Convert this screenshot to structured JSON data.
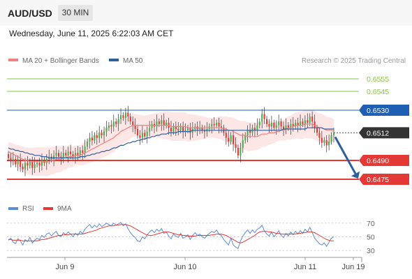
{
  "header": {
    "symbol": "AUD/USD",
    "timeframe": "30 MIN",
    "datetime": "Wednesday, June 11, 2025 6:22:03 AM CET"
  },
  "colors": {
    "candle_up": "#4caf50",
    "candle_down": "#e53935",
    "ma20": "#f08080",
    "bollinger_fill": "#fde2e2",
    "ma50": "#2c5f9e",
    "resistance": "#8bc34a",
    "pivot": "#1e5fb4",
    "support": "#e53935",
    "last_price": "#333333",
    "arrow": "#2c5f9e",
    "rsi": "#5b8cd6",
    "rsi_ma": "#e53935"
  },
  "chart_data": [
    {
      "type": "candlestick",
      "legend": [
        {
          "label": "MA 20 + Bollinger Bands",
          "color": "#f08080"
        },
        {
          "label": "MA 50",
          "color": "#2c5f9e"
        }
      ],
      "watermark": "Research © 2025 Trading Central",
      "ylim": [
        0.6465,
        0.6565
      ],
      "x_tick_labels": [
        "Jun 9",
        "Jun 10",
        "Jun 11",
        "Jun 19"
      ],
      "levels": [
        {
          "value": "0.6555",
          "kind": "resistance"
        },
        {
          "value": "0.6545",
          "kind": "resistance"
        },
        {
          "value": "0.6530",
          "kind": "pivot"
        },
        {
          "value": "0.6512",
          "kind": "last"
        },
        {
          "value": "0.6490",
          "kind": "support"
        },
        {
          "value": "0.6475",
          "kind": "support"
        }
      ],
      "forecast_arrow": {
        "from": 0.6512,
        "to": 0.6475
      },
      "closes": [
        0.6492,
        0.649,
        0.6491,
        0.6487,
        0.649,
        0.6485,
        0.6483,
        0.6488,
        0.6486,
        0.6489,
        0.6484,
        0.6487,
        0.6488,
        0.6486,
        0.649,
        0.6488,
        0.6491,
        0.6493,
        0.6491,
        0.6494,
        0.6496,
        0.6493,
        0.6492,
        0.6496,
        0.6494,
        0.6497,
        0.6495,
        0.6493,
        0.6496,
        0.6494,
        0.6498,
        0.6496,
        0.6501,
        0.6505,
        0.6508,
        0.6506,
        0.651,
        0.6508,
        0.6512,
        0.651,
        0.6513,
        0.6516,
        0.6518,
        0.6517,
        0.6521,
        0.6519,
        0.6523,
        0.6526,
        0.6524,
        0.6528,
        0.6525,
        0.6521,
        0.6518,
        0.6515,
        0.651,
        0.6508,
        0.6512,
        0.6509,
        0.6513,
        0.6516,
        0.6519,
        0.6517,
        0.6521,
        0.6519,
        0.6522,
        0.6518,
        0.652,
        0.6516,
        0.6513,
        0.6517,
        0.6515,
        0.6514,
        0.6517,
        0.6513,
        0.6514,
        0.6516,
        0.6512,
        0.6515,
        0.6517,
        0.6515,
        0.6516,
        0.6514,
        0.6513,
        0.6515,
        0.6517,
        0.6519,
        0.6518,
        0.652,
        0.6517,
        0.6516,
        0.6512,
        0.6508,
        0.6505,
        0.651,
        0.6503,
        0.65,
        0.6494,
        0.65,
        0.6506,
        0.651,
        0.6514,
        0.6512,
        0.6516,
        0.6514,
        0.6518,
        0.6521,
        0.6527,
        0.6523,
        0.6519,
        0.6517,
        0.652,
        0.6516,
        0.6518,
        0.6521,
        0.6517,
        0.6515,
        0.6518,
        0.6516,
        0.6519,
        0.6517,
        0.652,
        0.6518,
        0.6521,
        0.6519,
        0.6522,
        0.652,
        0.6525,
        0.6521,
        0.6516,
        0.6512,
        0.6508,
        0.6504,
        0.6506,
        0.6502,
        0.6505,
        0.651,
        0.6512
      ],
      "ma20": [
        0.6497,
        0.6496,
        0.6495,
        0.6494,
        0.6493,
        0.6492,
        0.6491,
        0.649,
        0.649,
        0.6489,
        0.6489,
        0.6489,
        0.6489,
        0.6489,
        0.6489,
        0.6489,
        0.6489,
        0.6489,
        0.649,
        0.649,
        0.6491,
        0.6491,
        0.6491,
        0.6492,
        0.6492,
        0.6493,
        0.6493,
        0.6493,
        0.6494,
        0.6494,
        0.6494,
        0.6495,
        0.6496,
        0.6497,
        0.6498,
        0.6499,
        0.65,
        0.6501,
        0.6502,
        0.6503,
        0.6504,
        0.6505,
        0.6506,
        0.6507,
        0.6508,
        0.651,
        0.6511,
        0.6513,
        0.6514,
        0.6515,
        0.6516,
        0.6517,
        0.6518,
        0.6518,
        0.6518,
        0.6518,
        0.6518,
        0.6518,
        0.6518,
        0.6518,
        0.6518,
        0.6518,
        0.6518,
        0.6518,
        0.6518,
        0.6518,
        0.6518,
        0.6518,
        0.6517,
        0.6517,
        0.6517,
        0.6517,
        0.6517,
        0.6517,
        0.6517,
        0.6516,
        0.6516,
        0.6516,
        0.6516,
        0.6516,
        0.6516,
        0.6516,
        0.6516,
        0.6516,
        0.6516,
        0.6516,
        0.6516,
        0.6516,
        0.6516,
        0.6516,
        0.6515,
        0.6515,
        0.6514,
        0.6514,
        0.6513,
        0.6512,
        0.6511,
        0.651,
        0.651,
        0.651,
        0.6509,
        0.6509,
        0.6509,
        0.6509,
        0.6509,
        0.651,
        0.6511,
        0.6511,
        0.6511,
        0.6512,
        0.6512,
        0.6512,
        0.6513,
        0.6513,
        0.6514,
        0.6514,
        0.6515,
        0.6516,
        0.6516,
        0.6517,
        0.6518,
        0.6518,
        0.6518,
        0.6518,
        0.6519,
        0.6519,
        0.6519,
        0.6519,
        0.6518,
        0.6517,
        0.6516,
        0.6516,
        0.6515,
        0.6514,
        0.6514,
        0.6514,
        0.6513
      ],
      "ma50": [
        0.65,
        0.6499,
        0.6499,
        0.6498,
        0.6498,
        0.6497,
        0.6497,
        0.6496,
        0.6496,
        0.6495,
        0.6495,
        0.6494,
        0.6494,
        0.6494,
        0.6493,
        0.6493,
        0.6493,
        0.6492,
        0.6492,
        0.6492,
        0.6492,
        0.6492,
        0.6492,
        0.6492,
        0.6492,
        0.6492,
        0.6492,
        0.6492,
        0.6492,
        0.6492,
        0.6493,
        0.6493,
        0.6493,
        0.6494,
        0.6494,
        0.6495,
        0.6495,
        0.6496,
        0.6496,
        0.6497,
        0.6497,
        0.6498,
        0.6498,
        0.6499,
        0.65,
        0.65,
        0.6501,
        0.6502,
        0.6502,
        0.6503,
        0.6504,
        0.6504,
        0.6505,
        0.6505,
        0.6506,
        0.6506,
        0.6507,
        0.6507,
        0.6508,
        0.6508,
        0.6509,
        0.6509,
        0.651,
        0.651,
        0.6511,
        0.6511,
        0.6511,
        0.6512,
        0.6512,
        0.6512,
        0.6512,
        0.6513,
        0.6513,
        0.6513,
        0.6513,
        0.6513,
        0.6513,
        0.6514,
        0.6514,
        0.6514,
        0.6514,
        0.6514,
        0.6514,
        0.6514,
        0.6514,
        0.6514,
        0.6514,
        0.6514,
        0.6514,
        0.6514,
        0.6514,
        0.6514,
        0.6514,
        0.6514,
        0.6514,
        0.6514,
        0.6514,
        0.6514,
        0.6514,
        0.6514,
        0.6514,
        0.6514,
        0.6514,
        0.6514,
        0.6514,
        0.6514,
        0.6514,
        0.6514,
        0.6514,
        0.6514,
        0.6514,
        0.6514,
        0.6514,
        0.6514,
        0.6514,
        0.6515,
        0.6515,
        0.6515,
        0.6515,
        0.6515,
        0.6515,
        0.6515,
        0.6515,
        0.6515,
        0.6515,
        0.6516,
        0.6516,
        0.6516,
        0.6516,
        0.6516,
        0.6516,
        0.6516,
        0.6515,
        0.6515,
        0.6515,
        0.6515,
        0.6515
      ]
    },
    {
      "type": "line",
      "legend": [
        {
          "label": "RSI",
          "color": "#5b8cd6"
        },
        {
          "label": "9MA",
          "color": "#e53935"
        }
      ],
      "ylim": [
        25,
        75
      ],
      "y_tick_labels": [
        "70",
        "50",
        "30"
      ],
      "rsi": [
        45,
        48,
        42,
        40,
        47,
        44,
        38,
        46,
        43,
        49,
        41,
        45,
        48,
        46,
        52,
        49,
        54,
        56,
        51,
        55,
        58,
        52,
        50,
        56,
        53,
        57,
        54,
        50,
        55,
        52,
        58,
        55,
        61,
        65,
        68,
        63,
        67,
        64,
        69,
        65,
        67,
        70,
        68,
        66,
        70,
        67,
        69,
        71,
        66,
        69,
        62,
        56,
        52,
        49,
        44,
        43,
        50,
        47,
        53,
        57,
        60,
        56,
        61,
        58,
        62,
        55,
        57,
        51,
        47,
        54,
        51,
        49,
        55,
        48,
        50,
        53,
        46,
        52,
        56,
        52,
        54,
        50,
        48,
        52,
        55,
        58,
        56,
        60,
        54,
        52,
        46,
        42,
        38,
        48,
        38,
        35,
        33,
        44,
        51,
        56,
        60,
        55,
        60,
        56,
        61,
        63,
        67,
        59,
        54,
        51,
        57,
        50,
        54,
        59,
        52,
        49,
        55,
        51,
        57,
        53,
        58,
        54,
        59,
        55,
        61,
        57,
        64,
        56,
        48,
        44,
        40,
        38,
        41,
        36,
        42,
        48,
        50
      ],
      "ma9": [
        46,
        46,
        45,
        45,
        45,
        45,
        44,
        44,
        44,
        44,
        44,
        44,
        44,
        45,
        46,
        46,
        47,
        48,
        49,
        50,
        51,
        52,
        52,
        53,
        53,
        53,
        54,
        54,
        54,
        54,
        54,
        54,
        55,
        56,
        57,
        58,
        59,
        60,
        62,
        63,
        64,
        65,
        66,
        66,
        66,
        67,
        67,
        68,
        68,
        68,
        67,
        66,
        64,
        62,
        60,
        58,
        56,
        54,
        53,
        52,
        52,
        53,
        54,
        55,
        56,
        57,
        57,
        57,
        56,
        55,
        54,
        53,
        53,
        52,
        52,
        51,
        51,
        51,
        51,
        52,
        52,
        52,
        52,
        52,
        52,
        53,
        53,
        54,
        54,
        54,
        53,
        52,
        50,
        48,
        46,
        44,
        42,
        41,
        42,
        44,
        46,
        48,
        50,
        52,
        55,
        57,
        58,
        58,
        58,
        57,
        57,
        56,
        55,
        55,
        54,
        54,
        54,
        54,
        54,
        54,
        54,
        55,
        55,
        56,
        56,
        57,
        57,
        57,
        56,
        54,
        52,
        50,
        48,
        46,
        45,
        44,
        44
      ]
    }
  ],
  "x_axis": {
    "labels": [
      "Jun 9",
      "Jun 10",
      "Jun 11",
      "Jun 19"
    ]
  }
}
